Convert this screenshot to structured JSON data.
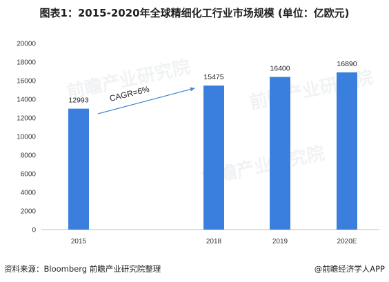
{
  "title": "图表1：2015-2020年全球精细化工行业市场规模 (单位：亿欧元)",
  "footer": {
    "source": "资料来源：Bloomberg 前瞻产业研究院整理",
    "credit": "@前瞻经济学人APP"
  },
  "watermark": "前瞻产业研究院",
  "colors": {
    "bar": "#3a7fde",
    "arrow": "#4a86d8",
    "axis": "#bfbfbf"
  },
  "chart_data": {
    "type": "bar",
    "title": "",
    "xlabel": "",
    "ylabel": "",
    "categories": [
      "2015",
      "2018",
      "2019",
      "2020E"
    ],
    "values": [
      12993,
      15475,
      16400,
      16890
    ],
    "data_labels": [
      "12993",
      "15475",
      "16400",
      "16890"
    ],
    "ylim": [
      0,
      20000
    ],
    "yticks": [
      0,
      2000,
      4000,
      6000,
      8000,
      10000,
      12000,
      14000,
      16000,
      18000,
      20000
    ],
    "grid": false,
    "legend": "none",
    "annotation": {
      "text": "CAGR=6%",
      "from": "2015",
      "to": "2018"
    }
  }
}
